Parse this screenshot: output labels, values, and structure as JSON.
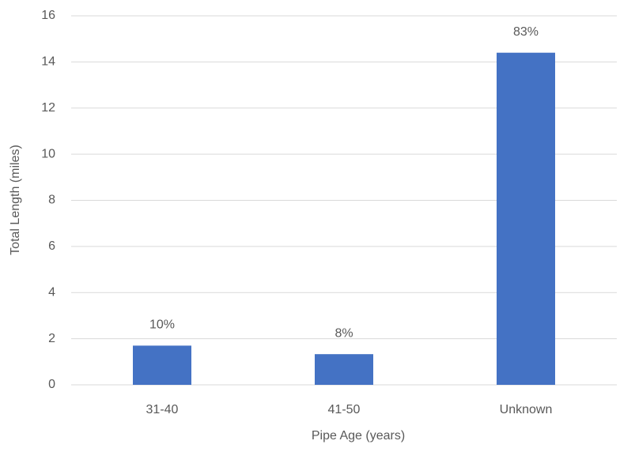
{
  "chart_data": {
    "type": "bar",
    "x_label": "Pipe Age (years)",
    "y_label": "Total Length (miles)",
    "categories": [
      "31-40",
      "41-50",
      "Unknown"
    ],
    "values": [
      1.7,
      1.33,
      14.4
    ],
    "value_labels": [
      "10%",
      "8%",
      "83%"
    ],
    "color": "#4472c4",
    "ylim": [
      0,
      16
    ],
    "yticks": [
      0,
      2,
      4,
      6,
      8,
      10,
      12,
      14,
      16
    ],
    "grid": true
  }
}
